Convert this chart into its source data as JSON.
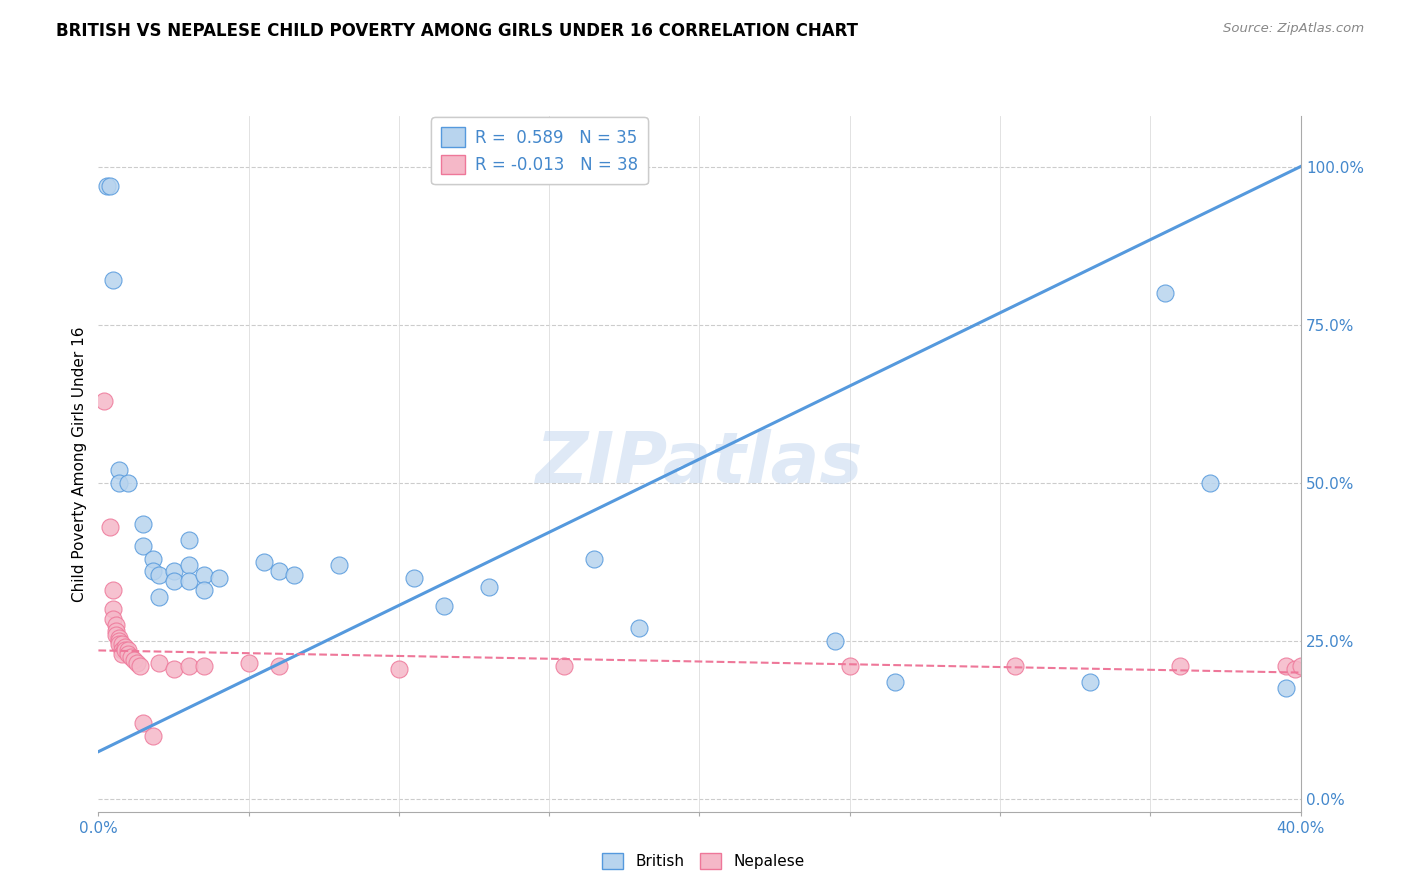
{
  "title": "BRITISH VS NEPALESE CHILD POVERTY AMONG GIRLS UNDER 16 CORRELATION CHART",
  "source": "Source: ZipAtlas.com",
  "ylabel": "Child Poverty Among Girls Under 16",
  "yticks": [
    0.0,
    0.25,
    0.5,
    0.75,
    1.0
  ],
  "ytick_labels": [
    "0.0%",
    "25.0%",
    "50.0%",
    "75.0%",
    "100.0%"
  ],
  "xlim": [
    0.0,
    0.4
  ],
  "ylim": [
    -0.02,
    1.08
  ],
  "watermark": "ZIPatlas",
  "british_R": 0.589,
  "british_N": 35,
  "nepalese_R": -0.013,
  "nepalese_N": 38,
  "british_color": "#b8d4ee",
  "nepalese_color": "#f5b8c8",
  "british_line_color": "#5599dd",
  "nepalese_line_color": "#ee7799",
  "british_line": [
    0.0,
    0.075,
    0.4,
    1.0
  ],
  "nepalese_line": [
    0.0,
    0.235,
    0.4,
    0.2
  ],
  "british_scatter": [
    [
      0.003,
      0.97
    ],
    [
      0.004,
      0.97
    ],
    [
      0.005,
      0.82
    ],
    [
      0.007,
      0.52
    ],
    [
      0.007,
      0.5
    ],
    [
      0.01,
      0.5
    ],
    [
      0.015,
      0.435
    ],
    [
      0.015,
      0.4
    ],
    [
      0.018,
      0.38
    ],
    [
      0.018,
      0.36
    ],
    [
      0.02,
      0.355
    ],
    [
      0.02,
      0.32
    ],
    [
      0.025,
      0.36
    ],
    [
      0.025,
      0.345
    ],
    [
      0.03,
      0.41
    ],
    [
      0.03,
      0.37
    ],
    [
      0.03,
      0.345
    ],
    [
      0.035,
      0.355
    ],
    [
      0.035,
      0.33
    ],
    [
      0.04,
      0.35
    ],
    [
      0.055,
      0.375
    ],
    [
      0.06,
      0.36
    ],
    [
      0.065,
      0.355
    ],
    [
      0.08,
      0.37
    ],
    [
      0.105,
      0.35
    ],
    [
      0.115,
      0.305
    ],
    [
      0.13,
      0.335
    ],
    [
      0.165,
      0.38
    ],
    [
      0.18,
      0.27
    ],
    [
      0.245,
      0.25
    ],
    [
      0.265,
      0.185
    ],
    [
      0.33,
      0.185
    ],
    [
      0.355,
      0.8
    ],
    [
      0.37,
      0.5
    ],
    [
      0.395,
      0.175
    ]
  ],
  "nepalese_scatter": [
    [
      0.002,
      0.63
    ],
    [
      0.004,
      0.43
    ],
    [
      0.005,
      0.33
    ],
    [
      0.005,
      0.3
    ],
    [
      0.005,
      0.285
    ],
    [
      0.006,
      0.275
    ],
    [
      0.006,
      0.265
    ],
    [
      0.006,
      0.26
    ],
    [
      0.007,
      0.255
    ],
    [
      0.007,
      0.25
    ],
    [
      0.007,
      0.245
    ],
    [
      0.008,
      0.245
    ],
    [
      0.008,
      0.235
    ],
    [
      0.008,
      0.23
    ],
    [
      0.009,
      0.24
    ],
    [
      0.009,
      0.235
    ],
    [
      0.01,
      0.235
    ],
    [
      0.01,
      0.23
    ],
    [
      0.011,
      0.225
    ],
    [
      0.012,
      0.22
    ],
    [
      0.013,
      0.215
    ],
    [
      0.014,
      0.21
    ],
    [
      0.015,
      0.12
    ],
    [
      0.018,
      0.1
    ],
    [
      0.02,
      0.215
    ],
    [
      0.025,
      0.205
    ],
    [
      0.03,
      0.21
    ],
    [
      0.035,
      0.21
    ],
    [
      0.05,
      0.215
    ],
    [
      0.06,
      0.21
    ],
    [
      0.1,
      0.205
    ],
    [
      0.155,
      0.21
    ],
    [
      0.25,
      0.21
    ],
    [
      0.305,
      0.21
    ],
    [
      0.36,
      0.21
    ],
    [
      0.395,
      0.21
    ],
    [
      0.398,
      0.205
    ],
    [
      0.4,
      0.21
    ]
  ]
}
